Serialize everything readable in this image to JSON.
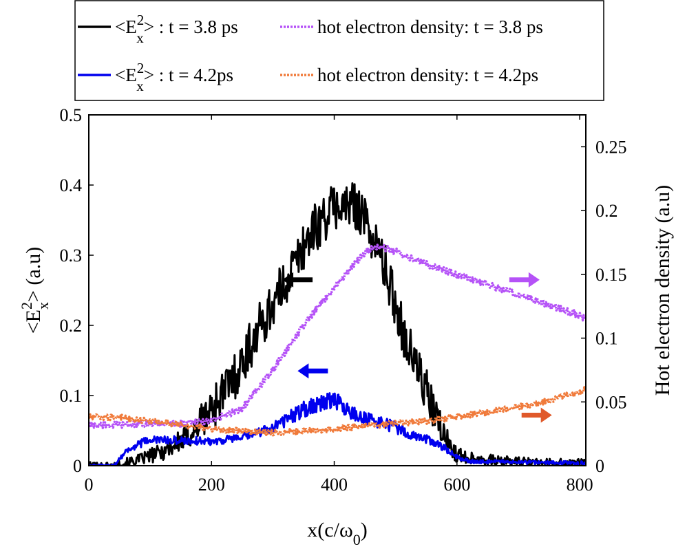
{
  "chart_data": {
    "type": "line",
    "xlabel": "x(c/ω0)",
    "ylabel_left": "<Ex2> (a.u)",
    "ylabel_right": "Hot electron density (a.u)",
    "xlim": [
      0,
      810
    ],
    "ylim_left": [
      0,
      0.5
    ],
    "ylim_right": [
      0,
      0.275
    ],
    "xticks": [
      0,
      200,
      400,
      600,
      800
    ],
    "xtick_labels": [
      "0",
      "200",
      "400",
      "600",
      "800"
    ],
    "yticks_left": [
      0,
      0.1,
      0.2,
      0.3,
      0.4,
      0.5
    ],
    "ytick_labels_left": [
      "0",
      "0.1",
      "0.2",
      "0.3",
      "0.4",
      "0.5"
    ],
    "yticks_right": [
      0,
      0.05,
      0.1,
      0.15,
      0.2,
      0.25
    ],
    "ytick_labels_right": [
      "0",
      "0.05",
      "0.1",
      "0.15",
      "0.2",
      "0.25"
    ],
    "grid": false,
    "legend_position": "above plot, two columns",
    "legend_labels": [
      "<Ex2> : t = 3.8 ps",
      "hot electron density: t = 3.8 ps",
      "<Ex2> : t = 4.2ps",
      "hot electron density: t = 4.2ps"
    ],
    "series": [
      {
        "name": "<Ex2> : t = 3.8 ps",
        "axis": "left",
        "color": "#000000",
        "style": "solid",
        "x": [
          0,
          40,
          80,
          120,
          160,
          200,
          240,
          280,
          320,
          360,
          400,
          420,
          440,
          460,
          480,
          500,
          520,
          540,
          560,
          580,
          600,
          650,
          700,
          750,
          800,
          810
        ],
        "values": [
          0.0,
          0.0,
          0.008,
          0.02,
          0.04,
          0.08,
          0.13,
          0.2,
          0.26,
          0.33,
          0.37,
          0.37,
          0.37,
          0.33,
          0.29,
          0.23,
          0.17,
          0.13,
          0.08,
          0.04,
          0.015,
          0.008,
          0.005,
          0.004,
          0.003,
          0.003
        ]
      },
      {
        "name": "hot electron density: t = 3.8 ps",
        "axis": "right",
        "color": "#b552f7",
        "style": "dotted",
        "x": [
          0,
          50,
          100,
          150,
          200,
          250,
          300,
          350,
          400,
          450,
          470,
          500,
          550,
          600,
          650,
          700,
          750,
          800,
          810
        ],
        "values": [
          0.032,
          0.032,
          0.033,
          0.033,
          0.035,
          0.045,
          0.075,
          0.11,
          0.14,
          0.167,
          0.172,
          0.168,
          0.158,
          0.15,
          0.142,
          0.134,
          0.126,
          0.118,
          0.115
        ]
      },
      {
        "name": "<Ex2> : t = 4.2ps",
        "axis": "left",
        "color": "#0000ee",
        "style": "solid",
        "x": [
          0,
          40,
          60,
          80,
          100,
          140,
          200,
          250,
          280,
          300,
          320,
          340,
          360,
          380,
          400,
          420,
          440,
          460,
          480,
          500,
          520,
          540,
          560,
          580,
          600,
          620,
          700,
          800,
          810
        ],
        "values": [
          0.0,
          0.0,
          0.02,
          0.03,
          0.037,
          0.036,
          0.035,
          0.04,
          0.048,
          0.055,
          0.065,
          0.075,
          0.085,
          0.09,
          0.095,
          0.08,
          0.07,
          0.065,
          0.06,
          0.055,
          0.045,
          0.04,
          0.035,
          0.025,
          0.012,
          0.006,
          0.005,
          0.004,
          0.004
        ]
      },
      {
        "name": "hot electron density: t = 4.2ps",
        "axis": "right",
        "color": "#f07a3a",
        "style": "dotted",
        "x": [
          0,
          50,
          100,
          150,
          200,
          250,
          300,
          350,
          400,
          450,
          500,
          550,
          600,
          650,
          700,
          750,
          800,
          810
        ],
        "values": [
          0.038,
          0.038,
          0.035,
          0.032,
          0.029,
          0.027,
          0.026,
          0.027,
          0.029,
          0.031,
          0.033,
          0.035,
          0.038,
          0.042,
          0.046,
          0.051,
          0.058,
          0.061
        ]
      }
    ],
    "annotations": [
      {
        "type": "arrow",
        "direction": "left",
        "color": "#000000",
        "x": 340,
        "y_left": 0.265
      },
      {
        "type": "arrow",
        "direction": "left",
        "color": "#0000ee",
        "x": 365,
        "y_left": 0.135
      },
      {
        "type": "arrow",
        "direction": "right",
        "color": "#b552f7",
        "x": 710,
        "y_left": 0.265
      },
      {
        "type": "arrow",
        "direction": "right",
        "color": "#e0592a",
        "x": 730,
        "y_left": 0.072
      }
    ]
  }
}
